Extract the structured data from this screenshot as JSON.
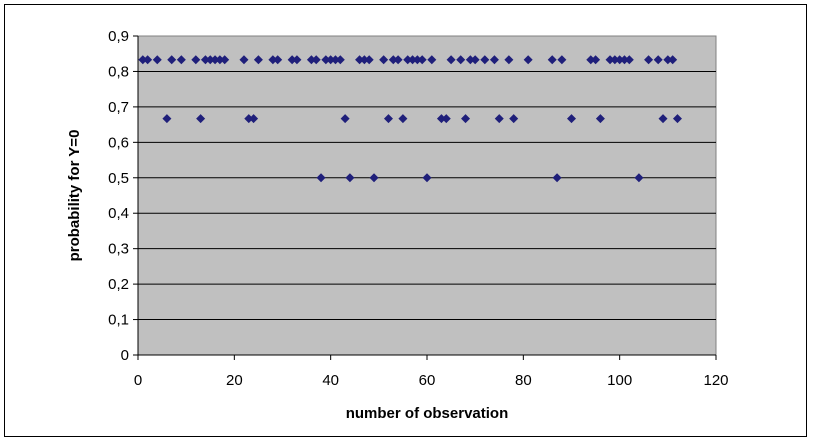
{
  "chart_data": {
    "type": "scatter",
    "title": "",
    "xlabel": "number of observation",
    "ylabel": "probability for Y=0",
    "xlim": [
      0,
      120
    ],
    "ylim": [
      0,
      0.9
    ],
    "x_ticks": [
      "0",
      "20",
      "40",
      "60",
      "80",
      "100",
      "120"
    ],
    "y_ticks": [
      "0",
      "0,1",
      "0,2",
      "0,3",
      "0,4",
      "0,5",
      "0,6",
      "0,7",
      "0,8",
      "0,9"
    ],
    "grid": "horizontal",
    "legend": "none",
    "plot_background": "#c0c0c0",
    "marker": "diamond",
    "marker_color": "#1f1f7a",
    "points": [
      [
        1,
        0.833
      ],
      [
        2,
        0.833
      ],
      [
        4,
        0.833
      ],
      [
        6,
        0.667
      ],
      [
        7,
        0.833
      ],
      [
        9,
        0.833
      ],
      [
        12,
        0.833
      ],
      [
        13,
        0.667
      ],
      [
        14,
        0.833
      ],
      [
        15,
        0.833
      ],
      [
        16,
        0.833
      ],
      [
        17,
        0.833
      ],
      [
        18,
        0.833
      ],
      [
        22,
        0.833
      ],
      [
        23,
        0.667
      ],
      [
        24,
        0.667
      ],
      [
        25,
        0.833
      ],
      [
        28,
        0.833
      ],
      [
        29,
        0.833
      ],
      [
        32,
        0.833
      ],
      [
        33,
        0.833
      ],
      [
        36,
        0.833
      ],
      [
        37,
        0.833
      ],
      [
        38,
        0.5
      ],
      [
        39,
        0.833
      ],
      [
        40,
        0.833
      ],
      [
        41,
        0.833
      ],
      [
        42,
        0.833
      ],
      [
        43,
        0.667
      ],
      [
        44,
        0.5
      ],
      [
        46,
        0.833
      ],
      [
        47,
        0.833
      ],
      [
        48,
        0.833
      ],
      [
        49,
        0.5
      ],
      [
        51,
        0.833
      ],
      [
        52,
        0.667
      ],
      [
        53,
        0.833
      ],
      [
        54,
        0.833
      ],
      [
        55,
        0.667
      ],
      [
        56,
        0.833
      ],
      [
        57,
        0.833
      ],
      [
        58,
        0.833
      ],
      [
        59,
        0.833
      ],
      [
        60,
        0.5
      ],
      [
        61,
        0.833
      ],
      [
        63,
        0.667
      ],
      [
        64,
        0.667
      ],
      [
        65,
        0.833
      ],
      [
        67,
        0.833
      ],
      [
        68,
        0.667
      ],
      [
        69,
        0.833
      ],
      [
        70,
        0.833
      ],
      [
        72,
        0.833
      ],
      [
        74,
        0.833
      ],
      [
        75,
        0.667
      ],
      [
        77,
        0.833
      ],
      [
        78,
        0.667
      ],
      [
        81,
        0.833
      ],
      [
        86,
        0.833
      ],
      [
        87,
        0.5
      ],
      [
        88,
        0.833
      ],
      [
        90,
        0.667
      ],
      [
        94,
        0.833
      ],
      [
        95,
        0.833
      ],
      [
        96,
        0.667
      ],
      [
        98,
        0.833
      ],
      [
        99,
        0.833
      ],
      [
        100,
        0.833
      ],
      [
        101,
        0.833
      ],
      [
        102,
        0.833
      ],
      [
        104,
        0.5
      ],
      [
        106,
        0.833
      ],
      [
        108,
        0.833
      ],
      [
        109,
        0.667
      ],
      [
        110,
        0.833
      ],
      [
        111,
        0.833
      ],
      [
        112,
        0.667
      ]
    ]
  }
}
